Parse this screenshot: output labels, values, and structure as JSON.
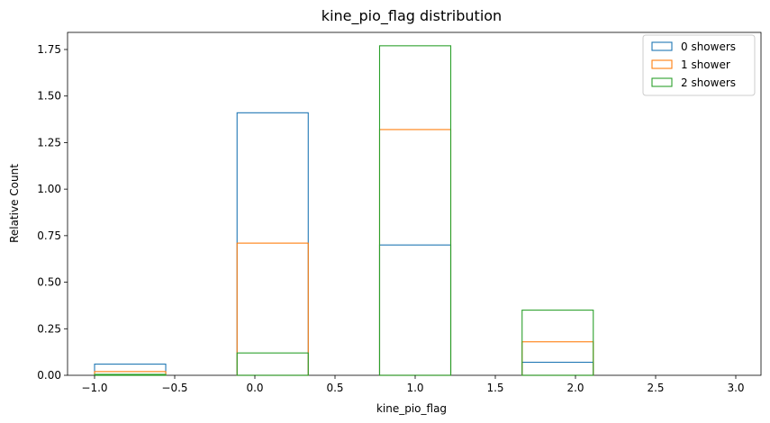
{
  "chart_data": {
    "type": "histogram",
    "title": "kine_pio_flag distribution",
    "xlabel": "kine_pio_flag",
    "ylabel": "Relative Count",
    "xlim": [
      -1.0,
      3.0
    ],
    "ylim": [
      0.0,
      1.85
    ],
    "x_ticks": [
      -1.0,
      -0.5,
      0.0,
      0.5,
      1.0,
      1.5,
      2.0,
      2.5,
      3.0
    ],
    "x_tick_labels": [
      "−1.0",
      "−0.5",
      "0.0",
      "0.5",
      "1.0",
      "1.5",
      "2.0",
      "2.5",
      "3.0"
    ],
    "y_ticks": [
      0.0,
      0.25,
      0.5,
      0.75,
      1.0,
      1.25,
      1.5,
      1.75
    ],
    "y_tick_labels": [
      "0.00",
      "0.25",
      "0.50",
      "0.75",
      "1.00",
      "1.25",
      "1.50",
      "1.75"
    ],
    "bin_edges": [
      -1.0,
      -0.556,
      -0.111,
      0.333,
      0.778,
      1.222,
      1.667,
      2.111,
      2.556,
      3.0
    ],
    "histtype": "step",
    "grid": false,
    "legend_position": "top-right",
    "series": [
      {
        "name": "0 showers",
        "color": "#1f77b4",
        "values": [
          0.06,
          0,
          1.41,
          0,
          0.7,
          0,
          0.07,
          0,
          0
        ]
      },
      {
        "name": "1 shower",
        "color": "#ff7f0e",
        "values": [
          0.02,
          0,
          0.71,
          0,
          1.32,
          0,
          0.18,
          0,
          0
        ]
      },
      {
        "name": "2 showers",
        "color": "#2ca02c",
        "values": [
          0.005,
          0,
          0.12,
          0,
          1.77,
          0,
          0.35,
          0,
          0
        ]
      }
    ]
  }
}
